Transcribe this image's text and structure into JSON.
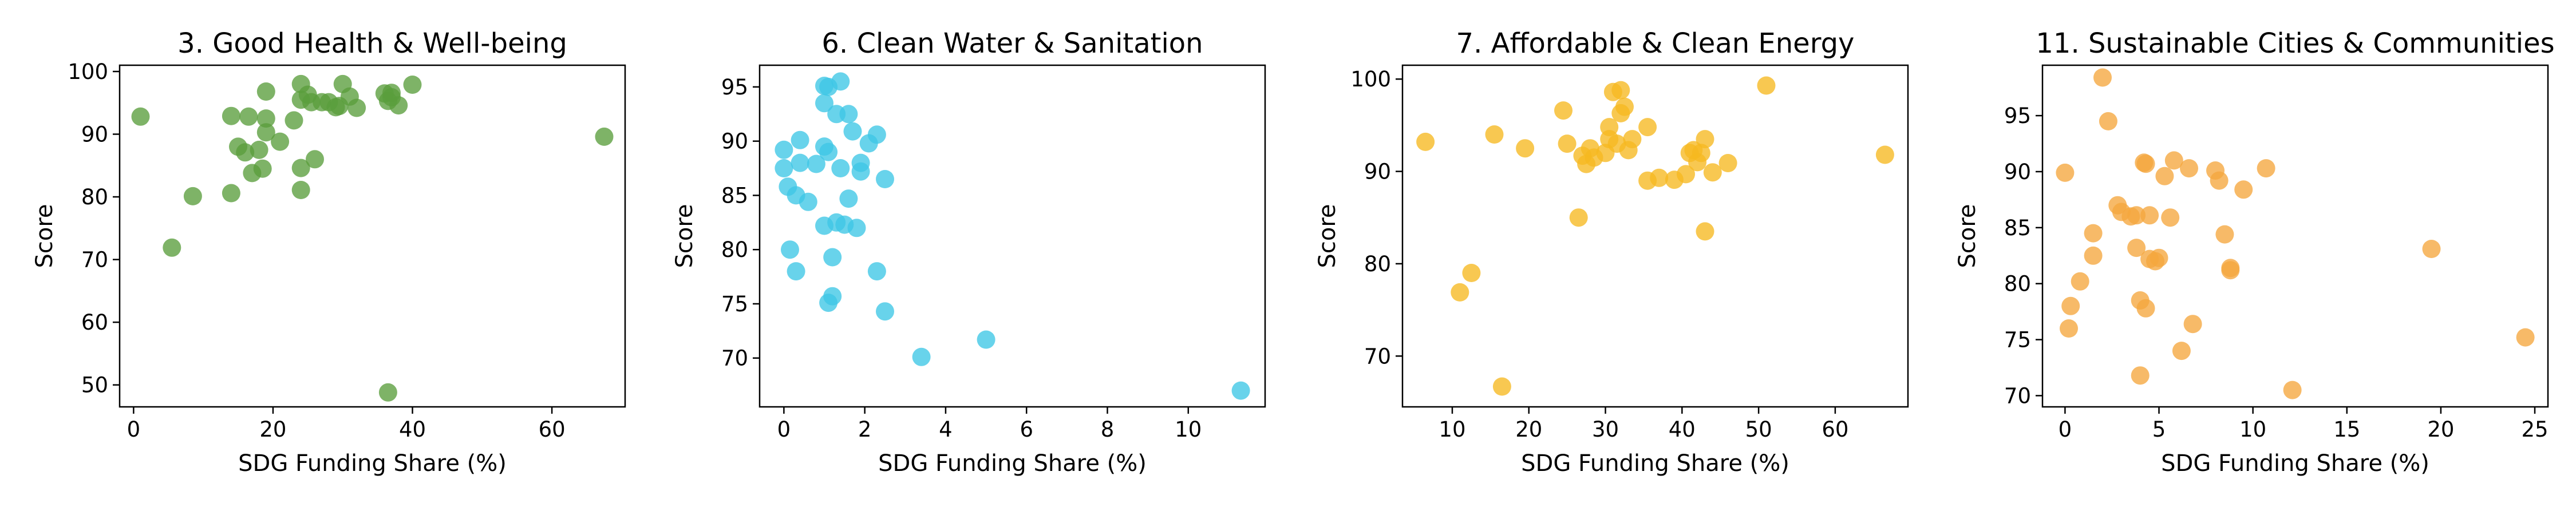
{
  "chart_data": [
    {
      "type": "scatter",
      "title": "3. Good Health & Well-being",
      "xlabel": "SDG Funding Share (%)",
      "ylabel": "Score",
      "color": "#5a9e3c",
      "xlim": [
        -2,
        70.5
      ],
      "ylim": [
        46.5,
        101
      ],
      "xticks": [
        0,
        20,
        40,
        60
      ],
      "yticks": [
        50,
        60,
        70,
        80,
        90,
        100
      ],
      "grid": false,
      "points": [
        [
          1,
          92.8
        ],
        [
          5.5,
          71.9
        ],
        [
          8.5,
          80.1
        ],
        [
          14,
          92.9
        ],
        [
          14,
          80.6
        ],
        [
          15,
          88
        ],
        [
          16,
          87.1
        ],
        [
          16.5,
          92.8
        ],
        [
          17,
          83.8
        ],
        [
          18,
          87.5
        ],
        [
          18.5,
          84.5
        ],
        [
          19,
          92.5
        ],
        [
          19,
          96.8
        ],
        [
          19,
          90.3
        ],
        [
          21,
          88.8
        ],
        [
          23,
          92.2
        ],
        [
          24,
          98
        ],
        [
          24,
          95.5
        ],
        [
          24,
          84.6
        ],
        [
          24,
          81.1
        ],
        [
          25,
          96.3
        ],
        [
          25.5,
          95.1
        ],
        [
          26,
          86
        ],
        [
          27,
          95.1
        ],
        [
          28,
          95.1
        ],
        [
          29,
          94.3
        ],
        [
          29.5,
          94.5
        ],
        [
          30,
          98
        ],
        [
          31,
          96
        ],
        [
          32,
          94.2
        ],
        [
          36,
          96.5
        ],
        [
          36.5,
          95.3
        ],
        [
          37,
          96.6
        ],
        [
          37,
          95.9
        ],
        [
          38,
          94.6
        ],
        [
          40,
          97.9
        ],
        [
          36.5,
          48.8
        ],
        [
          67.5,
          89.6
        ]
      ]
    },
    {
      "type": "scatter",
      "title": "6. Clean Water & Sanitation",
      "xlabel": "SDG Funding Share (%)",
      "ylabel": "Score",
      "color": "#3dc6e6",
      "xlim": [
        -0.6,
        11.9
      ],
      "ylim": [
        65.5,
        97
      ],
      "xticks": [
        0,
        2,
        4,
        6,
        8,
        10
      ],
      "yticks": [
        70,
        75,
        80,
        85,
        90,
        95
      ],
      "grid": false,
      "points": [
        [
          0,
          89.2
        ],
        [
          0,
          87.5
        ],
        [
          0.1,
          85.8
        ],
        [
          0.15,
          80
        ],
        [
          0.3,
          78
        ],
        [
          0.3,
          85
        ],
        [
          0.4,
          88
        ],
        [
          0.4,
          90.1
        ],
        [
          0.6,
          84.4
        ],
        [
          0.8,
          87.9
        ],
        [
          1,
          95.1
        ],
        [
          1,
          93.5
        ],
        [
          1.1,
          95
        ],
        [
          1,
          89.5
        ],
        [
          1.1,
          89
        ],
        [
          1,
          82.2
        ],
        [
          1.1,
          75.1
        ],
        [
          1.2,
          75.7
        ],
        [
          1.2,
          79.3
        ],
        [
          1.3,
          82.5
        ],
        [
          1.3,
          92.5
        ],
        [
          1.4,
          95.5
        ],
        [
          1.4,
          87.5
        ],
        [
          1.5,
          82.3
        ],
        [
          1.6,
          92.5
        ],
        [
          1.6,
          84.7
        ],
        [
          1.7,
          90.9
        ],
        [
          1.8,
          82
        ],
        [
          1.9,
          87.2
        ],
        [
          1.9,
          88
        ],
        [
          2.1,
          89.8
        ],
        [
          2.3,
          90.6
        ],
        [
          2.3,
          78
        ],
        [
          2.5,
          86.5
        ],
        [
          2.5,
          74.3
        ],
        [
          3.4,
          70.1
        ],
        [
          5,
          71.7
        ],
        [
          11.3,
          67
        ]
      ]
    },
    {
      "type": "scatter",
      "title": "7. Affordable & Clean Energy",
      "xlabel": "SDG Funding Share (%)",
      "ylabel": "Score",
      "color": "#f6b820",
      "xlim": [
        3.5,
        69.5
      ],
      "ylim": [
        64.5,
        101.5
      ],
      "xticks": [
        10,
        20,
        30,
        40,
        50,
        60
      ],
      "yticks": [
        70,
        80,
        90,
        100
      ],
      "grid": false,
      "points": [
        [
          6.5,
          93.2
        ],
        [
          11,
          76.9
        ],
        [
          12.5,
          79
        ],
        [
          15.5,
          94
        ],
        [
          16.5,
          66.7
        ],
        [
          19.5,
          92.5
        ],
        [
          24.5,
          96.6
        ],
        [
          25,
          93
        ],
        [
          26.5,
          85
        ],
        [
          27,
          91.7
        ],
        [
          27.5,
          90.8
        ],
        [
          28,
          92.5
        ],
        [
          28.5,
          91.5
        ],
        [
          30,
          92
        ],
        [
          30.5,
          94.8
        ],
        [
          30.5,
          93.5
        ],
        [
          31,
          98.6
        ],
        [
          31.5,
          93
        ],
        [
          32,
          96.3
        ],
        [
          32,
          98.8
        ],
        [
          32.5,
          97
        ],
        [
          33,
          92.3
        ],
        [
          33.5,
          93.5
        ],
        [
          35.5,
          94.8
        ],
        [
          35.5,
          89
        ],
        [
          37,
          89.3
        ],
        [
          39,
          89.1
        ],
        [
          40.5,
          89.7
        ],
        [
          41,
          92
        ],
        [
          41.5,
          92.3
        ],
        [
          42,
          91
        ],
        [
          42.5,
          92
        ],
        [
          43,
          93.5
        ],
        [
          43,
          83.5
        ],
        [
          44,
          89.9
        ],
        [
          46,
          90.9
        ],
        [
          51,
          99.3
        ],
        [
          66.5,
          91.8
        ]
      ]
    },
    {
      "type": "scatter",
      "title": "11.  Sustainable Cities & Communities",
      "xlabel": "SDG Funding Share (%)",
      "ylabel": "Score",
      "color": "#f5a63d",
      "xlim": [
        -1.2,
        25.7
      ],
      "ylim": [
        69,
        99.5
      ],
      "xticks": [
        0,
        5,
        10,
        15,
        20,
        25
      ],
      "yticks": [
        70,
        75,
        80,
        85,
        90,
        95
      ],
      "grid": false,
      "points": [
        [
          0,
          89.9
        ],
        [
          0.2,
          76
        ],
        [
          0.3,
          78
        ],
        [
          0.8,
          80.2
        ],
        [
          1.5,
          82.5
        ],
        [
          1.5,
          84.5
        ],
        [
          2,
          98.4
        ],
        [
          2.3,
          94.5
        ],
        [
          2.8,
          87
        ],
        [
          3,
          86.4
        ],
        [
          3.5,
          86
        ],
        [
          3.8,
          86.1
        ],
        [
          3.8,
          83.2
        ],
        [
          4,
          78.5
        ],
        [
          4,
          71.8
        ],
        [
          4.2,
          90.8
        ],
        [
          4.3,
          90.7
        ],
        [
          4.3,
          77.8
        ],
        [
          4.5,
          82.2
        ],
        [
          4.5,
          86.1
        ],
        [
          4.8,
          82
        ],
        [
          5,
          82.3
        ],
        [
          5.3,
          89.6
        ],
        [
          5.6,
          85.9
        ],
        [
          5.8,
          91
        ],
        [
          6.2,
          74
        ],
        [
          6.6,
          90.3
        ],
        [
          6.8,
          76.4
        ],
        [
          8,
          90.1
        ],
        [
          8.2,
          89.2
        ],
        [
          8.5,
          84.4
        ],
        [
          8.8,
          81.2
        ],
        [
          8.8,
          81.4
        ],
        [
          9.5,
          88.4
        ],
        [
          10.7,
          90.3
        ],
        [
          12.1,
          70.5
        ],
        [
          19.5,
          83.1
        ],
        [
          24.5,
          75.2
        ]
      ]
    }
  ]
}
